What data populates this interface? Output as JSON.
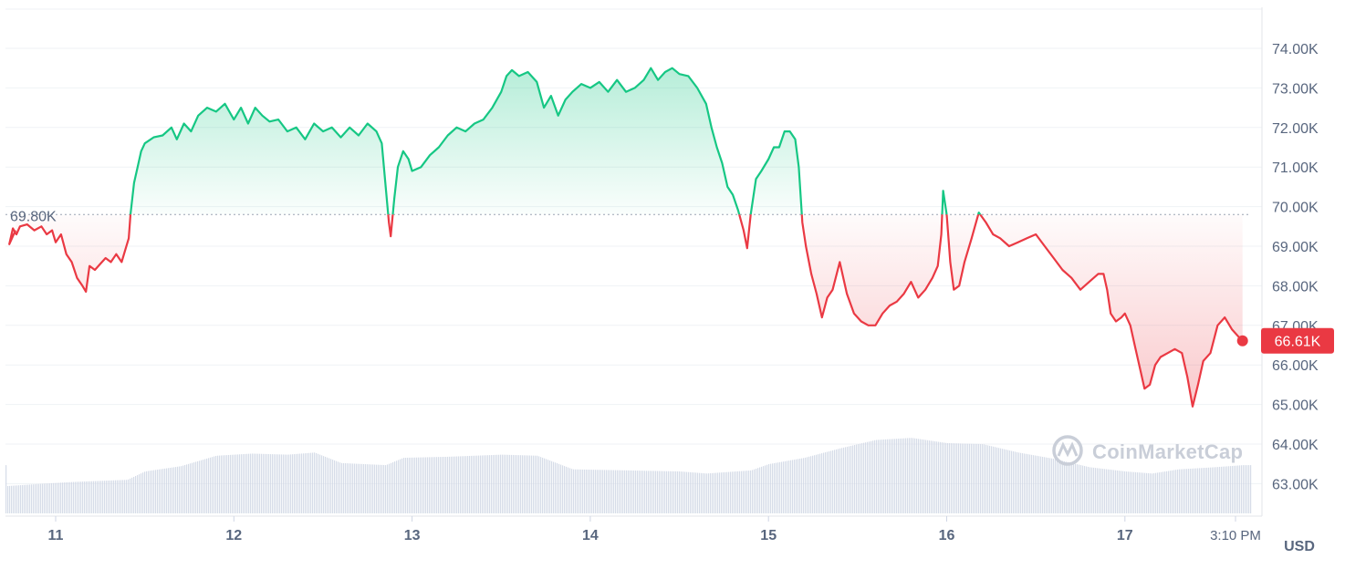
{
  "chart_data": {
    "type": "area",
    "title": "",
    "xlabel": "",
    "ylabel": "",
    "unit_label": "USD",
    "baseline_value": 69.8,
    "baseline_label": "69.80K",
    "current_price_label": "66.61K",
    "watermark": "CoinMarketCap",
    "ylim": [
      62.3,
      75.0
    ],
    "y_ticks": [
      {
        "value": 74,
        "label": "74.00K"
      },
      {
        "value": 73,
        "label": "73.00K"
      },
      {
        "value": 72,
        "label": "72.00K"
      },
      {
        "value": 71,
        "label": "71.00K"
      },
      {
        "value": 70,
        "label": "70.00K"
      },
      {
        "value": 69,
        "label": "69.00K"
      },
      {
        "value": 68,
        "label": "68.00K"
      },
      {
        "value": 67,
        "label": "67.00K"
      },
      {
        "value": 66,
        "label": "66.00K"
      },
      {
        "value": 65,
        "label": "65.00K"
      },
      {
        "value": 64,
        "label": "64.00K"
      },
      {
        "value": 63,
        "label": "63.00K"
      }
    ],
    "x_ticks": [
      {
        "day": 11,
        "label": "11"
      },
      {
        "day": 12,
        "label": "12"
      },
      {
        "day": 13,
        "label": "13"
      },
      {
        "day": 14,
        "label": "14"
      },
      {
        "day": 15,
        "label": "15"
      },
      {
        "day": 16,
        "label": "16"
      },
      {
        "day": 17,
        "label": "17"
      },
      {
        "day": 17.69,
        "label": "3:10 PM"
      }
    ],
    "x_range": [
      10.72,
      17.69
    ],
    "series": [
      {
        "values": [
          [
            10.72,
            69.4
          ],
          [
            10.74,
            69.05
          ],
          [
            10.76,
            69.45
          ],
          [
            10.78,
            69.3
          ],
          [
            10.8,
            69.5
          ],
          [
            10.84,
            69.55
          ],
          [
            10.88,
            69.4
          ],
          [
            10.92,
            69.5
          ],
          [
            10.95,
            69.3
          ],
          [
            10.98,
            69.4
          ],
          [
            11.0,
            69.1
          ],
          [
            11.03,
            69.3
          ],
          [
            11.06,
            68.8
          ],
          [
            11.09,
            68.6
          ],
          [
            11.12,
            68.2
          ],
          [
            11.15,
            68.0
          ],
          [
            11.17,
            67.85
          ],
          [
            11.19,
            68.5
          ],
          [
            11.22,
            68.4
          ],
          [
            11.25,
            68.55
          ],
          [
            11.28,
            68.7
          ],
          [
            11.31,
            68.6
          ],
          [
            11.34,
            68.8
          ],
          [
            11.37,
            68.6
          ],
          [
            11.39,
            68.9
          ],
          [
            11.41,
            69.2
          ],
          [
            11.42,
            69.8
          ],
          [
            11.44,
            70.6
          ],
          [
            11.46,
            71.0
          ],
          [
            11.48,
            71.4
          ],
          [
            11.5,
            71.6
          ],
          [
            11.55,
            71.75
          ],
          [
            11.6,
            71.8
          ],
          [
            11.65,
            72.0
          ],
          [
            11.68,
            71.7
          ],
          [
            11.72,
            72.1
          ],
          [
            11.76,
            71.9
          ],
          [
            11.8,
            72.3
          ],
          [
            11.85,
            72.5
          ],
          [
            11.9,
            72.4
          ],
          [
            11.95,
            72.6
          ],
          [
            12.0,
            72.2
          ],
          [
            12.04,
            72.5
          ],
          [
            12.08,
            72.1
          ],
          [
            12.12,
            72.5
          ],
          [
            12.16,
            72.3
          ],
          [
            12.2,
            72.15
          ],
          [
            12.25,
            72.2
          ],
          [
            12.3,
            71.9
          ],
          [
            12.35,
            72.0
          ],
          [
            12.4,
            71.7
          ],
          [
            12.45,
            72.1
          ],
          [
            12.5,
            71.9
          ],
          [
            12.55,
            72.0
          ],
          [
            12.6,
            71.75
          ],
          [
            12.65,
            72.0
          ],
          [
            12.7,
            71.8
          ],
          [
            12.75,
            72.1
          ],
          [
            12.8,
            71.9
          ],
          [
            12.83,
            71.6
          ],
          [
            12.85,
            70.6
          ],
          [
            12.87,
            69.6
          ],
          [
            12.88,
            69.25
          ],
          [
            12.9,
            70.2
          ],
          [
            12.92,
            71.0
          ],
          [
            12.95,
            71.4
          ],
          [
            12.98,
            71.2
          ],
          [
            13.0,
            70.9
          ],
          [
            13.05,
            71.0
          ],
          [
            13.1,
            71.3
          ],
          [
            13.15,
            71.5
          ],
          [
            13.2,
            71.8
          ],
          [
            13.25,
            72.0
          ],
          [
            13.3,
            71.9
          ],
          [
            13.35,
            72.1
          ],
          [
            13.4,
            72.2
          ],
          [
            13.45,
            72.5
          ],
          [
            13.5,
            72.9
          ],
          [
            13.53,
            73.3
          ],
          [
            13.56,
            73.45
          ],
          [
            13.6,
            73.3
          ],
          [
            13.65,
            73.4
          ],
          [
            13.7,
            73.15
          ],
          [
            13.74,
            72.5
          ],
          [
            13.78,
            72.8
          ],
          [
            13.82,
            72.3
          ],
          [
            13.86,
            72.7
          ],
          [
            13.9,
            72.9
          ],
          [
            13.95,
            73.1
          ],
          [
            14.0,
            73.0
          ],
          [
            14.05,
            73.15
          ],
          [
            14.1,
            72.9
          ],
          [
            14.15,
            73.2
          ],
          [
            14.2,
            72.9
          ],
          [
            14.25,
            73.0
          ],
          [
            14.3,
            73.2
          ],
          [
            14.34,
            73.5
          ],
          [
            14.38,
            73.2
          ],
          [
            14.42,
            73.4
          ],
          [
            14.46,
            73.5
          ],
          [
            14.5,
            73.35
          ],
          [
            14.55,
            73.3
          ],
          [
            14.6,
            73.0
          ],
          [
            14.65,
            72.6
          ],
          [
            14.68,
            72.0
          ],
          [
            14.71,
            71.5
          ],
          [
            14.74,
            71.1
          ],
          [
            14.77,
            70.5
          ],
          [
            14.8,
            70.3
          ],
          [
            14.83,
            69.9
          ],
          [
            14.86,
            69.4
          ],
          [
            14.88,
            68.95
          ],
          [
            14.9,
            69.8
          ],
          [
            14.93,
            70.7
          ],
          [
            14.96,
            70.9
          ],
          [
            15.0,
            71.2
          ],
          [
            15.03,
            71.5
          ],
          [
            15.06,
            71.5
          ],
          [
            15.09,
            71.9
          ],
          [
            15.12,
            71.9
          ],
          [
            15.15,
            71.7
          ],
          [
            15.17,
            71.0
          ],
          [
            15.19,
            69.6
          ],
          [
            15.21,
            69.0
          ],
          [
            15.24,
            68.3
          ],
          [
            15.27,
            67.8
          ],
          [
            15.3,
            67.2
          ],
          [
            15.33,
            67.7
          ],
          [
            15.36,
            67.9
          ],
          [
            15.4,
            68.6
          ],
          [
            15.44,
            67.8
          ],
          [
            15.48,
            67.3
          ],
          [
            15.52,
            67.1
          ],
          [
            15.56,
            67.0
          ],
          [
            15.6,
            67.0
          ],
          [
            15.64,
            67.3
          ],
          [
            15.68,
            67.5
          ],
          [
            15.72,
            67.6
          ],
          [
            15.76,
            67.8
          ],
          [
            15.8,
            68.1
          ],
          [
            15.84,
            67.7
          ],
          [
            15.88,
            67.9
          ],
          [
            15.92,
            68.2
          ],
          [
            15.95,
            68.5
          ],
          [
            15.97,
            69.3
          ],
          [
            15.98,
            70.4
          ],
          [
            16.0,
            69.8
          ],
          [
            16.02,
            68.6
          ],
          [
            16.04,
            67.9
          ],
          [
            16.07,
            68.0
          ],
          [
            16.1,
            68.6
          ],
          [
            16.14,
            69.2
          ],
          [
            16.18,
            69.85
          ],
          [
            16.22,
            69.6
          ],
          [
            16.26,
            69.3
          ],
          [
            16.3,
            69.2
          ],
          [
            16.35,
            69.0
          ],
          [
            16.4,
            69.1
          ],
          [
            16.45,
            69.2
          ],
          [
            16.5,
            69.3
          ],
          [
            16.55,
            69.0
          ],
          [
            16.6,
            68.7
          ],
          [
            16.65,
            68.4
          ],
          [
            16.7,
            68.2
          ],
          [
            16.75,
            67.9
          ],
          [
            16.8,
            68.1
          ],
          [
            16.85,
            68.3
          ],
          [
            16.88,
            68.3
          ],
          [
            16.9,
            67.9
          ],
          [
            16.92,
            67.3
          ],
          [
            16.95,
            67.1
          ],
          [
            16.98,
            67.2
          ],
          [
            17.0,
            67.3
          ],
          [
            17.03,
            67.0
          ],
          [
            17.06,
            66.4
          ],
          [
            17.09,
            65.8
          ],
          [
            17.11,
            65.4
          ],
          [
            17.14,
            65.5
          ],
          [
            17.17,
            66.0
          ],
          [
            17.2,
            66.2
          ],
          [
            17.24,
            66.3
          ],
          [
            17.28,
            66.4
          ],
          [
            17.32,
            66.3
          ],
          [
            17.35,
            65.7
          ],
          [
            17.38,
            64.95
          ],
          [
            17.41,
            65.5
          ],
          [
            17.44,
            66.1
          ],
          [
            17.48,
            66.3
          ],
          [
            17.52,
            67.0
          ],
          [
            17.56,
            67.2
          ],
          [
            17.6,
            66.9
          ],
          [
            17.64,
            66.7
          ],
          [
            17.66,
            66.61
          ]
        ]
      }
    ],
    "volume": {
      "range": [
        0,
        1
      ],
      "values": [
        [
          10.72,
          0.26
        ],
        [
          10.9,
          0.28
        ],
        [
          11.1,
          0.3
        ],
        [
          11.4,
          0.32
        ],
        [
          11.5,
          0.4
        ],
        [
          11.7,
          0.45
        ],
        [
          11.9,
          0.55
        ],
        [
          12.1,
          0.57
        ],
        [
          12.3,
          0.56
        ],
        [
          12.45,
          0.58
        ],
        [
          12.6,
          0.48
        ],
        [
          12.85,
          0.46
        ],
        [
          12.95,
          0.53
        ],
        [
          13.2,
          0.54
        ],
        [
          13.5,
          0.56
        ],
        [
          13.7,
          0.55
        ],
        [
          13.9,
          0.42
        ],
        [
          14.2,
          0.41
        ],
        [
          14.5,
          0.4
        ],
        [
          14.65,
          0.38
        ],
        [
          14.9,
          0.41
        ],
        [
          15.0,
          0.47
        ],
        [
          15.2,
          0.53
        ],
        [
          15.4,
          0.62
        ],
        [
          15.6,
          0.7
        ],
        [
          15.8,
          0.72
        ],
        [
          16.0,
          0.67
        ],
        [
          16.2,
          0.66
        ],
        [
          16.4,
          0.58
        ],
        [
          16.6,
          0.52
        ],
        [
          16.8,
          0.44
        ],
        [
          17.0,
          0.4
        ],
        [
          17.15,
          0.38
        ],
        [
          17.3,
          0.42
        ],
        [
          17.5,
          0.44
        ],
        [
          17.66,
          0.46
        ]
      ]
    }
  }
}
